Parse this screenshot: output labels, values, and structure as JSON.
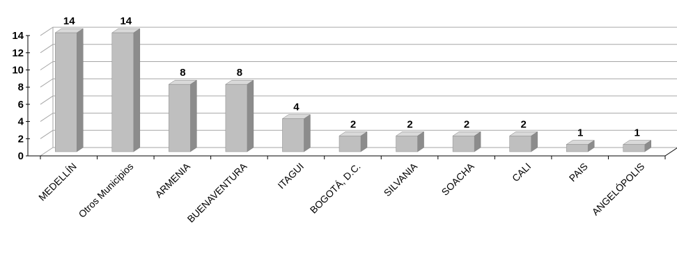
{
  "chart_data": {
    "type": "bar",
    "categories": [
      "MEDELLÍN",
      "Otros Municipios",
      "ARMENIA",
      "BUENAVENTURA",
      "ITAGUI",
      "BOGOTÁ, D.C.",
      "SILVANIA",
      "SOACHA",
      "CALI",
      "PAIS",
      "ANGELÓPOLIS"
    ],
    "values": [
      14,
      14,
      8,
      8,
      4,
      2,
      2,
      2,
      2,
      1,
      1
    ],
    "data_labels": [
      "14",
      "14",
      "8",
      "8",
      "4",
      "2",
      "2",
      "2",
      "2",
      "1",
      "1"
    ],
    "yticks": [
      "0",
      "2",
      "4",
      "6",
      "8",
      "10",
      "12",
      "14"
    ],
    "ylim": [
      0,
      14
    ],
    "grid": true,
    "style": "3d-column",
    "bar_color": "#bfbfbf",
    "bar_side_color": "#8c8c8c",
    "bar_top_color": "#d9d9d9",
    "grid_color": "#a6a6a6"
  }
}
